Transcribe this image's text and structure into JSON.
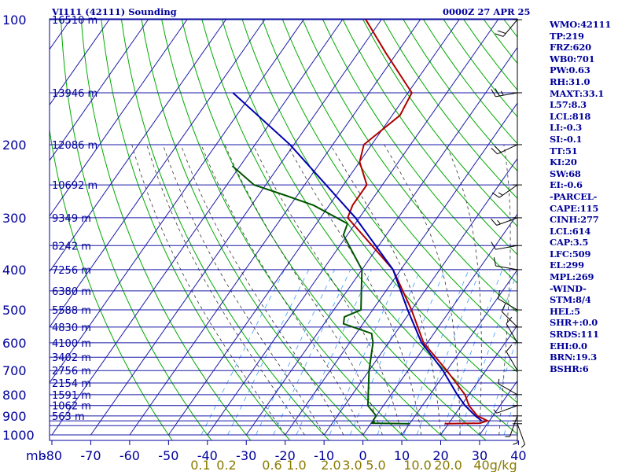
{
  "header": {
    "title": "VI111 (42111) Sounding",
    "valid_time": "0000Z 27 APR 25"
  },
  "indices": [
    "WMO:42111",
    "TP:219",
    "FRZ:620",
    "WB0:701",
    "PW:0.63",
    "RH:31.0",
    "MAXT:33.1",
    "L57:8.3",
    "LCL:818",
    "LI:-0.3",
    "SI:-0.1",
    "TT:51",
    "KI:20",
    "SW:68",
    "EI:-0.6",
    "-PARCEL-",
    "CAPE:115",
    "CINH:277",
    "LCL:614",
    "CAP:3.5",
    "LFC:509",
    "EL:299",
    "MPL:269",
    "-WIND-",
    "STM:8/4",
    "HEL:5",
    "SHR+:0.0",
    "SRDS:111",
    "EHI:0.0",
    "BRN:19.3",
    "BSHR:6"
  ],
  "chart_data": {
    "type": "line",
    "chart_kind": "skew-T log-P sounding",
    "colors": {
      "frame": "#00009c",
      "grid": "#1a1aa8",
      "dry_adiabat": "#00aa00",
      "moist_adiabat": "#333333",
      "mixing_ratio": "#3c9cff",
      "temperature": "#b00000",
      "dewpoint": "#005500",
      "parcel": "#0000b0",
      "mixing_labels": "#8a7a00",
      "wind": "#000000"
    },
    "x_axis": {
      "unit_label": "mb",
      "range": [
        -80,
        40
      ],
      "ticks": [
        -80,
        -70,
        -60,
        -50,
        -40,
        -30,
        -20,
        -10,
        0,
        10,
        20,
        30,
        40
      ]
    },
    "y_axis": {
      "scale": "log",
      "range": [
        1000,
        100
      ],
      "ticks": [
        100,
        200,
        300,
        400,
        500,
        600,
        700,
        800,
        900,
        1000
      ]
    },
    "height_labels": [
      {
        "p": 100,
        "text": "16510 m"
      },
      {
        "p": 150,
        "text": "13946 m"
      },
      {
        "p": 200,
        "text": "12086 m"
      },
      {
        "p": 250,
        "text": "10692 m"
      },
      {
        "p": 300,
        "text": "9349 m"
      },
      {
        "p": 350,
        "text": "8242 m"
      },
      {
        "p": 400,
        "text": "7256 m"
      },
      {
        "p": 450,
        "text": "6380 m"
      },
      {
        "p": 500,
        "text": "5588 m"
      },
      {
        "p": 550,
        "text": "4830 m"
      },
      {
        "p": 600,
        "text": "4100 m"
      },
      {
        "p": 650,
        "text": "3402 m"
      },
      {
        "p": 700,
        "text": "2756 m"
      },
      {
        "p": 750,
        "text": "2154 m"
      },
      {
        "p": 800,
        "text": "1591 m"
      },
      {
        "p": 850,
        "text": "1062 m"
      },
      {
        "p": 900,
        "text": "563 m"
      }
    ],
    "mixing_ratio_labels": [
      "0.1",
      "0.2",
      "0.6",
      "1.0",
      "2.0",
      "3.0",
      "5.0",
      "10.0",
      "20.0",
      "40g/kg"
    ],
    "series": [
      {
        "key": "temperature",
        "points": [
          [
            940,
            19
          ],
          [
            937,
            28
          ],
          [
            925,
            29.5
          ],
          [
            900,
            26
          ],
          [
            850,
            22
          ],
          [
            800,
            19
          ],
          [
            700,
            10
          ],
          [
            600,
            -1
          ],
          [
            500,
            -10
          ],
          [
            400,
            -22
          ],
          [
            300,
            -43
          ],
          [
            280,
            -44
          ],
          [
            250,
            -44
          ],
          [
            220,
            -50
          ],
          [
            200,
            -52
          ],
          [
            170,
            -48
          ],
          [
            150,
            -49
          ],
          [
            120,
            -63
          ],
          [
            100,
            -74
          ]
        ]
      },
      {
        "key": "dewpoint",
        "points": [
          [
            940,
            10
          ],
          [
            937,
            0
          ],
          [
            930,
            0.5
          ],
          [
            920,
            0
          ],
          [
            900,
            0
          ],
          [
            850,
            -4
          ],
          [
            700,
            -10
          ],
          [
            600,
            -14
          ],
          [
            570,
            -16
          ],
          [
            540,
            -25
          ],
          [
            520,
            -26
          ],
          [
            500,
            -23
          ],
          [
            400,
            -30
          ],
          [
            330,
            -41
          ],
          [
            310,
            -42
          ],
          [
            280,
            -54
          ],
          [
            265,
            -63
          ],
          [
            250,
            -73
          ],
          [
            225,
            -82
          ]
        ]
      },
      {
        "key": "parcel",
        "points": [
          [
            925,
            28
          ],
          [
            900,
            25.5
          ],
          [
            850,
            21
          ],
          [
            800,
            17
          ],
          [
            700,
            9
          ],
          [
            650,
            4
          ],
          [
            600,
            -1.5
          ],
          [
            500,
            -11
          ],
          [
            400,
            -22
          ],
          [
            300,
            -41
          ],
          [
            200,
            -71
          ],
          [
            150,
            -95
          ]
        ]
      }
    ],
    "wind": [
      {
        "p": 100,
        "dir": 220,
        "spd": 20
      },
      {
        "p": 150,
        "dir": 260,
        "spd": 25
      },
      {
        "p": 200,
        "dir": 245,
        "spd": 20
      },
      {
        "p": 250,
        "dir": 235,
        "spd": 15
      },
      {
        "p": 300,
        "dir": 250,
        "spd": 15
      },
      {
        "p": 350,
        "dir": 260,
        "spd": 10
      },
      {
        "p": 400,
        "dir": 280,
        "spd": 10
      },
      {
        "p": 500,
        "dir": 300,
        "spd": 10
      },
      {
        "p": 550,
        "dir": 315,
        "spd": 10
      },
      {
        "p": 600,
        "dir": 330,
        "spd": 10
      },
      {
        "p": 700,
        "dir": 330,
        "spd": 10
      },
      {
        "p": 800,
        "dir": 300,
        "spd": 5
      },
      {
        "p": 850,
        "dir": 250,
        "spd": 5
      },
      {
        "p": 900,
        "dir": 200,
        "spd": 5
      },
      {
        "p": 925,
        "dir": 180,
        "spd": 5
      },
      {
        "p": 940,
        "dir": 160,
        "spd": 5
      }
    ]
  }
}
